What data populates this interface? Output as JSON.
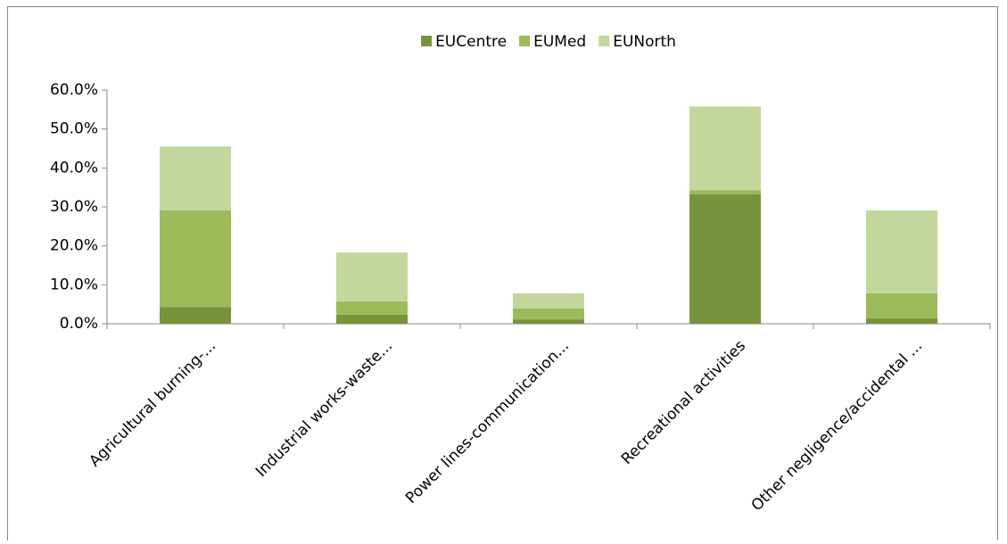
{
  "chart_data": {
    "type": "stacked_bar",
    "categories": [
      "Agricultural burning-...",
      "Industrial works-waste...",
      "Power lines-communication...",
      "Recreational activities",
      "Other negligence/accidental ..."
    ],
    "series": [
      {
        "name": "EUCentre",
        "color": "#77933c",
        "values": [
          4.3,
          2.3,
          1.1,
          33.2,
          1.4
        ]
      },
      {
        "name": "EUMed",
        "color": "#9bbb59",
        "values": [
          24.8,
          3.4,
          2.8,
          1.1,
          6.4
        ]
      },
      {
        "name": "EUNorth",
        "color": "#c3d69b",
        "values": [
          16.4,
          12.6,
          3.9,
          21.5,
          21.3
        ]
      }
    ],
    "ylim": [
      0,
      60
    ],
    "yticks": [
      {
        "value": 0,
        "label": "0.0%"
      },
      {
        "value": 10,
        "label": "10.0%"
      },
      {
        "value": 20,
        "label": "20.0%"
      },
      {
        "value": 30,
        "label": "30.0%"
      },
      {
        "value": 40,
        "label": "40.0%"
      },
      {
        "value": 50,
        "label": "50.0%"
      },
      {
        "value": 60,
        "label": "60.0%"
      }
    ],
    "legend": "top"
  }
}
